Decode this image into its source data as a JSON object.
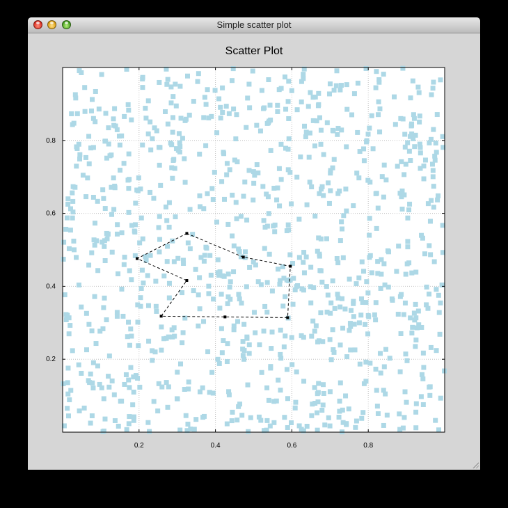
{
  "window": {
    "title": "Simple scatter plot"
  },
  "colors": {
    "point": "#add8e6",
    "polyline": "#000000",
    "grid": "#c0c0c0"
  },
  "chart_data": {
    "type": "scatter",
    "title": "Scatter Plot",
    "xlabel": "",
    "ylabel": "",
    "xlim": [
      0,
      1
    ],
    "ylim": [
      0,
      1
    ],
    "grid": true,
    "x_ticks": [
      0.2,
      0.4,
      0.6,
      0.8
    ],
    "x_tick_labels": [
      "0.2",
      "0.4",
      "0.6",
      "0.8"
    ],
    "y_ticks": [
      0.2,
      0.4,
      0.6,
      0.8
    ],
    "y_tick_labels": [
      "0.2",
      "0.4",
      "0.6",
      "0.8"
    ],
    "scatter_points": {
      "count": 1000,
      "distribution": "uniform random over [0,1] x [0,1]",
      "marker": "square",
      "color": "#add8e6"
    },
    "selection_polygon": {
      "style": "dashed",
      "closed": true,
      "x": [
        0.325,
        0.473,
        0.596,
        0.589,
        0.425,
        0.258,
        0.325,
        0.195
      ],
      "y": [
        0.545,
        0.48,
        0.455,
        0.314,
        0.316,
        0.318,
        0.416,
        0.476
      ]
    }
  }
}
